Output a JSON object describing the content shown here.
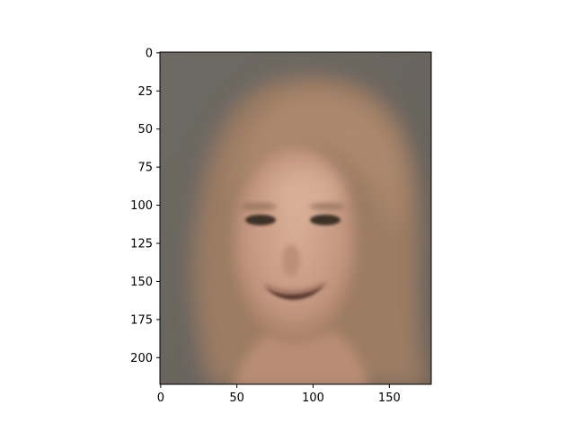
{
  "chart_data": {
    "type": "image",
    "title": "",
    "xlabel": "",
    "ylabel": "",
    "image_description": "blurry reconstructed face of a smiling woman with long light-brown hair on a grey background",
    "image_width": 178,
    "image_height": 218,
    "xlim": [
      -0.5,
      177.5
    ],
    "ylim": [
      217.5,
      -0.5
    ],
    "xticks": [
      0,
      50,
      100,
      150
    ],
    "yticks": [
      0,
      25,
      50,
      75,
      100,
      125,
      150,
      175,
      200
    ],
    "grid": false,
    "colors": {
      "background": "#6b6761",
      "hair": "#a07e63",
      "skin": "#c79a80",
      "shadow": "#3f362c"
    }
  }
}
